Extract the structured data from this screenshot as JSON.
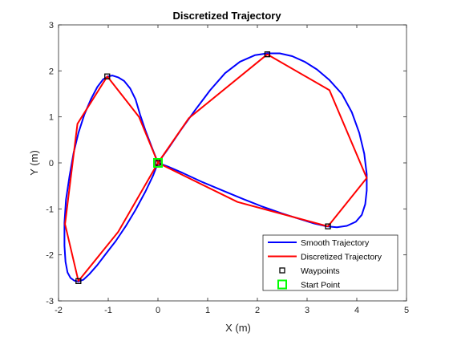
{
  "chart_data": {
    "type": "line",
    "title": "Discretized Trajectory",
    "xlabel": "X (m)",
    "ylabel": "Y (m)",
    "xlim": [
      -2,
      5
    ],
    "ylim": [
      -3,
      3
    ],
    "xticks": [
      -2,
      -1,
      0,
      1,
      2,
      3,
      4,
      5
    ],
    "yticks": [
      -3,
      -2,
      -1,
      0,
      1,
      2,
      3
    ],
    "grid": false,
    "legend_position": "bottom-right",
    "series": [
      {
        "name": "Smooth Trajectory",
        "color": "#0000ff",
        "kind": "line",
        "x": [
          0,
          -0.12,
          -0.25,
          -0.36,
          -0.45,
          -0.56,
          -0.68,
          -0.8,
          -0.92,
          -1.0,
          -1.1,
          -1.22,
          -1.35,
          -1.48,
          -1.6,
          -1.7,
          -1.78,
          -1.85,
          -1.88,
          -1.88,
          -1.86,
          -1.82,
          -1.76,
          -1.68,
          -1.6,
          -1.5,
          -1.38,
          -1.22,
          -1.05,
          -0.85,
          -0.65,
          -0.45,
          -0.25,
          -0.1,
          0,
          0.2,
          0.45,
          0.75,
          1.05,
          1.35,
          1.65,
          1.95,
          2.2,
          2.45,
          2.7,
          2.95,
          3.2,
          3.45,
          3.7,
          3.9,
          4.05,
          4.15,
          4.2,
          4.2,
          4.17,
          4.1,
          3.98,
          3.8,
          3.6,
          3.4,
          3.15,
          2.85,
          2.5,
          2.1,
          1.7,
          1.3,
          0.9,
          0.5,
          0.2,
          0
        ],
        "y": [
          0,
          0.33,
          0.7,
          1.05,
          1.38,
          1.62,
          1.78,
          1.86,
          1.9,
          1.88,
          1.82,
          1.65,
          1.38,
          1.05,
          0.65,
          0.2,
          -0.3,
          -0.8,
          -1.3,
          -1.8,
          -2.15,
          -2.38,
          -2.5,
          -2.56,
          -2.58,
          -2.54,
          -2.42,
          -2.22,
          -1.98,
          -1.7,
          -1.38,
          -1.02,
          -0.62,
          -0.28,
          0,
          0.3,
          0.7,
          1.15,
          1.58,
          1.95,
          2.2,
          2.34,
          2.38,
          2.38,
          2.32,
          2.2,
          2.03,
          1.8,
          1.5,
          1.1,
          0.65,
          0.2,
          -0.25,
          -0.6,
          -0.9,
          -1.13,
          -1.28,
          -1.37,
          -1.4,
          -1.38,
          -1.32,
          -1.22,
          -1.1,
          -0.95,
          -0.78,
          -0.6,
          -0.42,
          -0.22,
          -0.08,
          0
        ]
      },
      {
        "name": "Discretized Trajectory",
        "color": "#ff0000",
        "kind": "line",
        "x": [
          0,
          -0.38,
          -1.02,
          -1.62,
          -1.87,
          -1.6,
          -0.8,
          0,
          0.62,
          2.2,
          3.45,
          4.2,
          3.42,
          1.6,
          0
        ],
        "y": [
          0,
          1.0,
          1.88,
          0.85,
          -1.33,
          -2.57,
          -1.5,
          0,
          0.97,
          2.36,
          1.58,
          -0.33,
          -1.38,
          -0.85,
          0
        ]
      },
      {
        "name": "Waypoints",
        "color": "#000000",
        "kind": "square-marker",
        "x": [
          0,
          -1.02,
          -1.6,
          2.2,
          3.42
        ],
        "y": [
          0,
          1.88,
          -2.57,
          2.36,
          -1.38
        ]
      },
      {
        "name": "Start Point",
        "color": "#00ff00",
        "kind": "square-marker",
        "x": [
          0
        ],
        "y": [
          0
        ]
      }
    ]
  }
}
